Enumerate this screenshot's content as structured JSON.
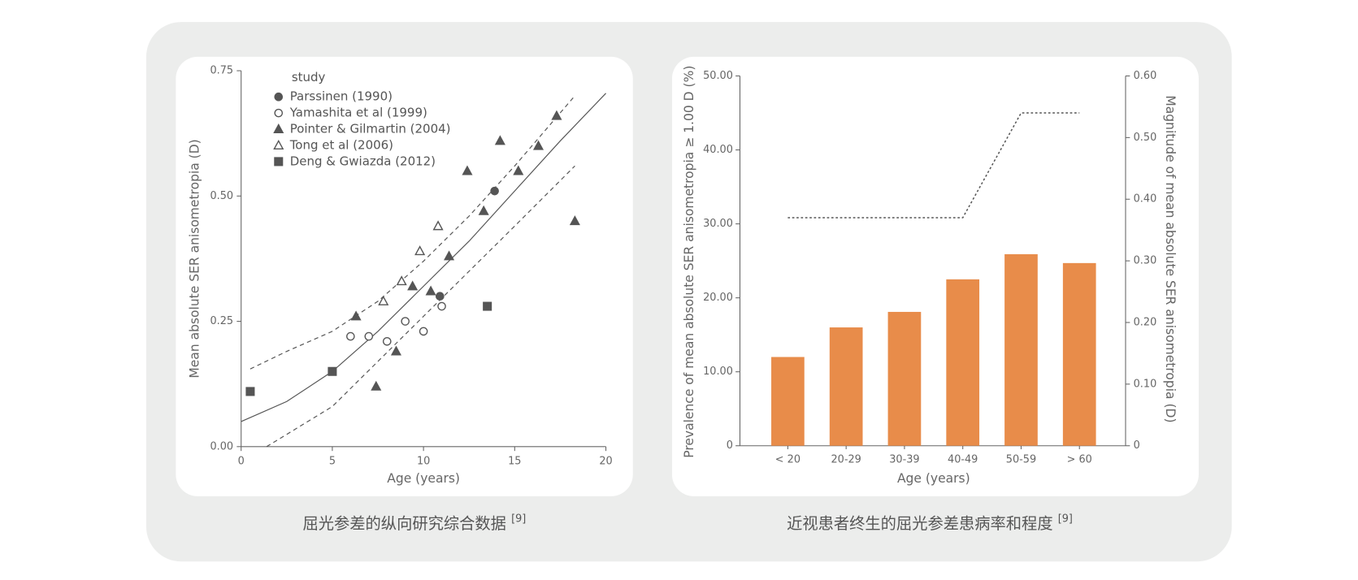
{
  "chart_data": [
    {
      "type": "scatter",
      "caption": "屈光参差的纵向研究综合数据",
      "caption_ref": "[9]",
      "x_label": "Age (years)",
      "y_label": "Mean absolute SER anisometropia (D)",
      "legend_title": "study",
      "xlim": [
        0,
        20
      ],
      "xticks": [
        0,
        5,
        10,
        15,
        20
      ],
      "ylim": [
        0,
        0.75
      ],
      "yticks": [
        {
          "value": 0,
          "label": "0.00"
        },
        {
          "value": 0.25,
          "label": "0.25"
        },
        {
          "value": 0.5,
          "label": "0.50"
        },
        {
          "value": 0.75,
          "label": "0.75"
        }
      ],
      "color": "#555555",
      "series": [
        {
          "name": "Parssinen (1990)",
          "marker": "circle",
          "filled": true,
          "x": [
            13.9,
            10.9
          ],
          "y": [
            0.51,
            0.3
          ]
        },
        {
          "name": "Yamashita et al (1999)",
          "marker": "circle",
          "filled": false,
          "x": [
            6.0,
            7.0,
            8.0,
            9.0,
            10.0,
            11.0
          ],
          "y": [
            0.22,
            0.22,
            0.21,
            0.25,
            0.23,
            0.28
          ]
        },
        {
          "name": "Pointer & Gilmartin (2004)",
          "marker": "triangle",
          "filled": true,
          "x": [
            6.3,
            7.4,
            8.5,
            9.4,
            10.4,
            11.4,
            12.4,
            13.3,
            14.2,
            15.2,
            16.3,
            17.3,
            18.3
          ],
          "y": [
            0.26,
            0.12,
            0.19,
            0.32,
            0.31,
            0.38,
            0.55,
            0.47,
            0.61,
            0.55,
            0.6,
            0.66,
            0.45
          ]
        },
        {
          "name": "Tong et al (2006)",
          "marker": "triangle",
          "filled": false,
          "x": [
            7.8,
            8.8,
            9.8,
            10.8
          ],
          "y": [
            0.29,
            0.33,
            0.39,
            0.44
          ]
        },
        {
          "name": "Deng & Gwiazda (2012)",
          "marker": "square",
          "filled": true,
          "x": [
            0.5,
            5.0,
            13.5
          ],
          "y": [
            0.11,
            0.15,
            0.28
          ]
        }
      ],
      "lines": [
        {
          "style": "solid",
          "x": [
            0,
            2.5,
            5,
            7.5,
            10,
            12.5,
            15,
            17.5,
            20
          ],
          "y": [
            0.05,
            0.09,
            0.15,
            0.23,
            0.32,
            0.41,
            0.51,
            0.61,
            0.705
          ]
        },
        {
          "style": "dashed",
          "x": [
            0.5,
            2.5,
            5,
            7.5,
            10,
            12.5,
            15,
            18.3
          ],
          "y": [
            0.155,
            0.19,
            0.23,
            0.29,
            0.37,
            0.46,
            0.56,
            0.7
          ]
        },
        {
          "style": "dashed",
          "x": [
            1.4,
            5,
            7.5,
            10,
            12.5,
            15,
            18.3
          ],
          "y": [
            0,
            0.08,
            0.17,
            0.26,
            0.35,
            0.44,
            0.56
          ]
        }
      ]
    },
    {
      "type": "bar",
      "caption": "近视患者终生的屈光参差患病率和程度",
      "caption_ref": "[9]",
      "x_label": "Age (years)",
      "y_label": "Prevalence of mean absolute SER anisometropia ≥ 1.00 D (%)",
      "y2_label": "Magnitude of mean absolute SER anisometropia (D)",
      "categories": [
        "< 20",
        "20-29",
        "30-39",
        "40-49",
        "50-59",
        "> 60"
      ],
      "ylim": [
        0,
        50
      ],
      "yticks": [
        0,
        {
          "value": 10,
          "label": "10.00"
        },
        {
          "value": 20,
          "label": "20.00"
        },
        {
          "value": 30,
          "label": "30.00"
        },
        {
          "value": 40,
          "label": "40.00"
        },
        {
          "value": 50,
          "label": "50.00"
        }
      ],
      "y2lim": [
        0,
        0.6
      ],
      "y2ticks": [
        0,
        {
          "value": 0.1,
          "label": "0.10"
        },
        {
          "value": 0.2,
          "label": "0.20"
        },
        {
          "value": 0.3,
          "label": "0.30"
        },
        {
          "value": 0.4,
          "label": "0.40"
        },
        {
          "value": 0.5,
          "label": "0.50"
        },
        {
          "value": 0.6,
          "label": "0.60"
        }
      ],
      "series": [
        {
          "type": "bar",
          "color": "#e88c4a",
          "values": [
            12,
            16,
            18.1,
            22.5,
            25.9,
            24.7
          ]
        },
        {
          "type": "line",
          "style": "dotted",
          "color": "#555555",
          "axis": "y2",
          "values": [
            0.37,
            0.37,
            0.37,
            0.37,
            0.54,
            0.54
          ]
        }
      ]
    }
  ]
}
